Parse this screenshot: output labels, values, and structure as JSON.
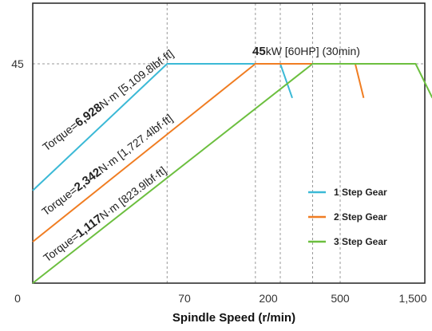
{
  "chart_data": {
    "type": "line",
    "xlabel": "Spindle Speed (r/min)",
    "ylabel": "",
    "x_ticks": [
      {
        "label": "0",
        "value": 0
      },
      {
        "label": "70",
        "value": 70
      },
      {
        "label": "200",
        "value": 200
      },
      {
        "label": "500",
        "value": 500
      },
      {
        "label": "1,500",
        "value": 1500
      }
    ],
    "y_ticks": [
      {
        "label": "45",
        "value": 45
      }
    ],
    "grid": true,
    "legend_position": "bottom-right",
    "colors": {
      "1 Step Gear": "#3bb9d6",
      "2 Step Gear": "#f07d22",
      "3 Step Gear": "#6cbf3f",
      "grid": "#999999",
      "frame": "#222222"
    },
    "series": [
      {
        "name": "1 Step Gear",
        "points": [
          {
            "x": 0,
            "y": 19.0
          },
          {
            "x": 62,
            "y": 45
          },
          {
            "x": 250,
            "y": 45
          },
          {
            "x": 300,
            "y": 38
          }
        ]
      },
      {
        "name": "2 Step Gear",
        "points": [
          {
            "x": 0,
            "y": 8.5
          },
          {
            "x": 180,
            "y": 45
          },
          {
            "x": 680,
            "y": 45
          },
          {
            "x": 780,
            "y": 38
          }
        ]
      },
      {
        "name": "3 Step Gear",
        "points": [
          {
            "x": 0,
            "y": 0
          },
          {
            "x": 385,
            "y": 45
          },
          {
            "x": 1400,
            "y": 45
          },
          {
            "x": 1600,
            "y": 38
          }
        ]
      }
    ],
    "annotations": {
      "power": {
        "bold": "45",
        "rest": "kW [60HP] (30min)"
      },
      "torque_1": {
        "prefix": "Torque=",
        "bold": "6,928",
        "rest": "N·m  [5,109.8lbf·ft]"
      },
      "torque_2": {
        "prefix": "Torque=",
        "bold": "2,342",
        "rest": "N·m  [1,727.4lbf·ft]"
      },
      "torque_3": {
        "prefix": "Torque=",
        "bold": "1,117",
        "rest": "N·m  [823.9lbf·ft]"
      }
    },
    "legend": [
      "1 Step Gear",
      "2 Step Gear",
      "3 Step Gear"
    ]
  }
}
